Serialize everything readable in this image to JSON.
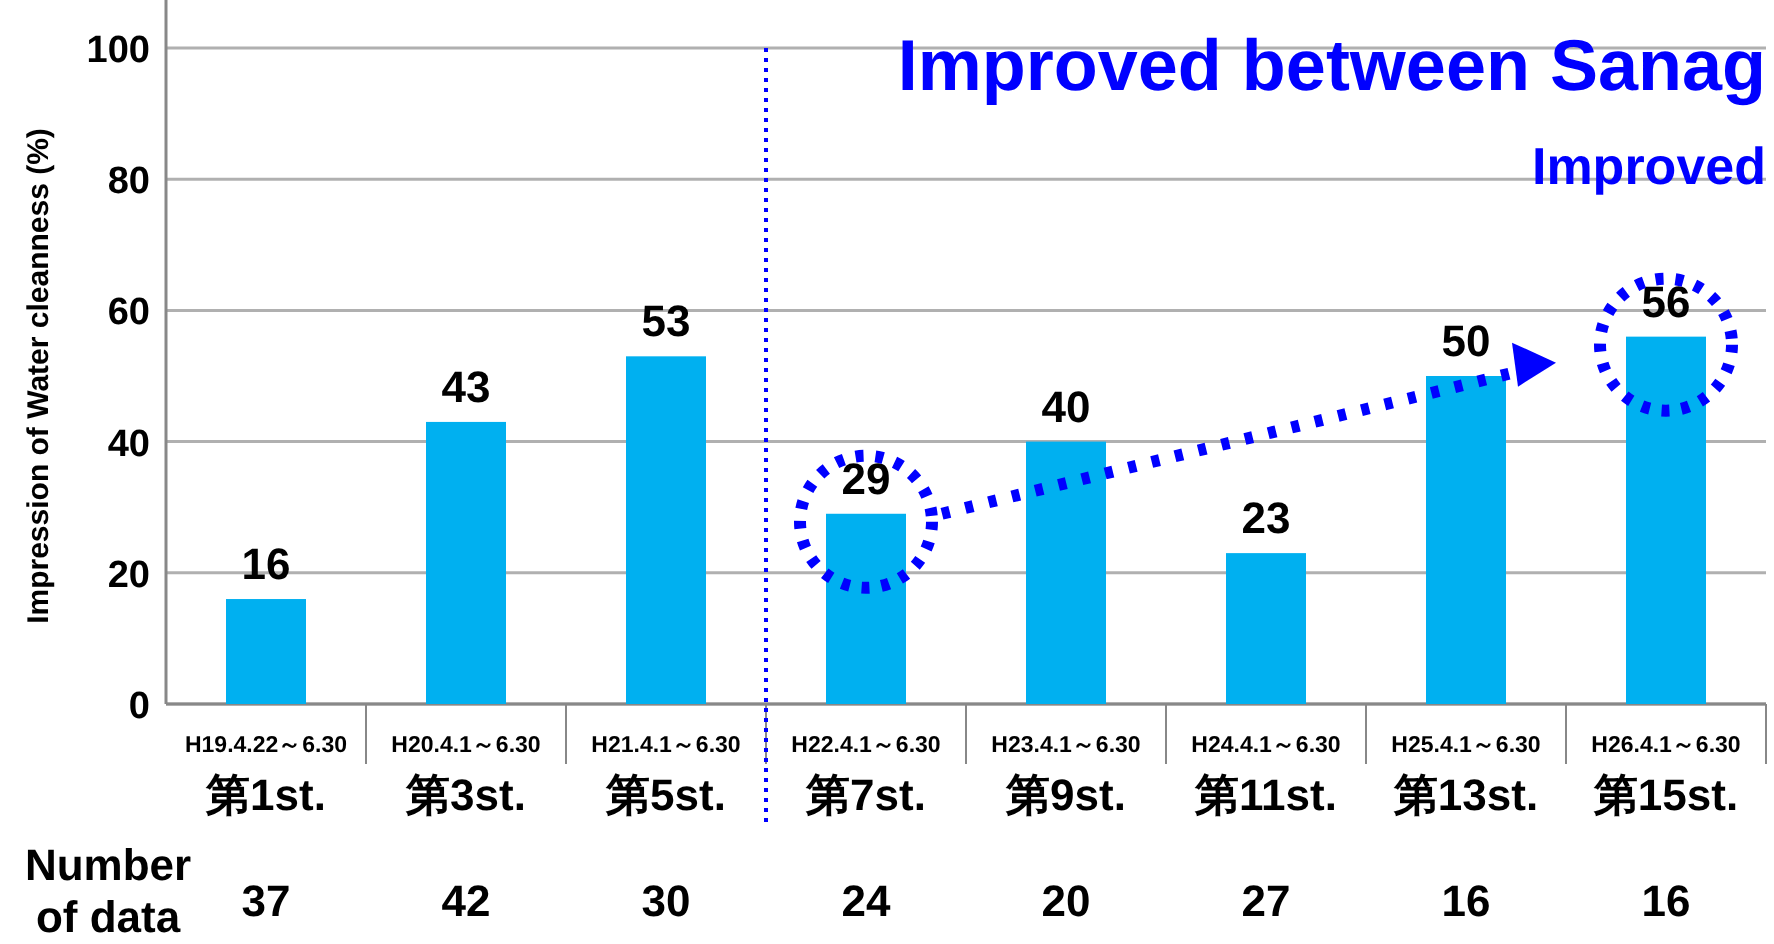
{
  "chart_data": {
    "type": "bar",
    "ylabel": "Impression of Water cleanness (%)",
    "categories": [
      "H19.4.22～6.30\n第1st.",
      "H20.4.1～6.30\n第3st.",
      "H21.4.1～6.30\n第5st.",
      "H22.4.1～6.30\n第7st.",
      "H23.4.1～6.30\n第9st.",
      "H24.4.1～6.30\n第11st.",
      "H25.4.1～6.30\n第13st.",
      "H26.4.1～6.30\n第15st."
    ],
    "values": [
      16,
      43,
      53,
      29,
      40,
      23,
      50,
      56
    ],
    "color": "#00b0f0",
    "data_labels": true,
    "ylim": [
      0,
      100
    ],
    "yticks": [
      0,
      20,
      40,
      60,
      80,
      100
    ],
    "grid": "y",
    "annotations": [
      "Improved between Sanag",
      "Improved",
      "Number\nof data",
      "37",
      "42",
      "30",
      "24",
      "20",
      "27",
      "16",
      "16"
    ]
  }
}
